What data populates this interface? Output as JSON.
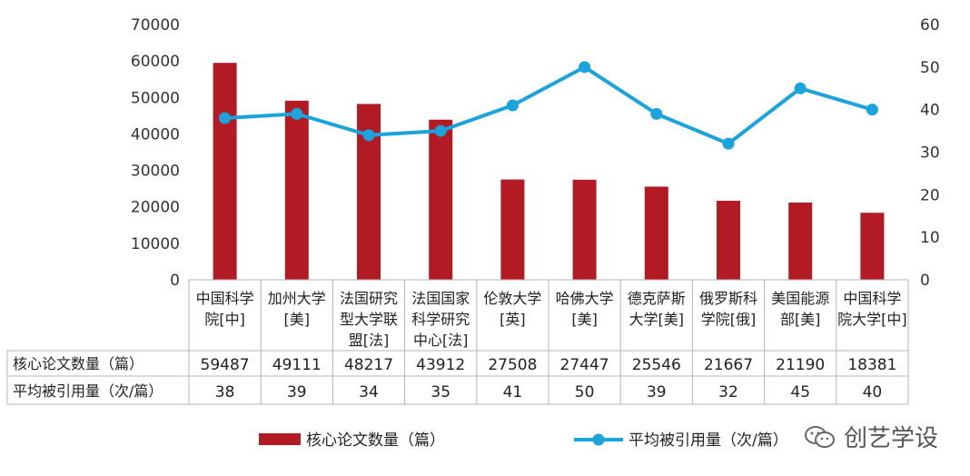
{
  "chart_data": {
    "type": "bar",
    "categories": [
      [
        "中国科学",
        "院[中]"
      ],
      [
        "加州大学",
        "[美]"
      ],
      [
        "法国研究",
        "型大学联",
        "盟[法]"
      ],
      [
        "法国国家",
        "科学研究",
        "中心[法]"
      ],
      [
        "伦敦大学",
        "[英]"
      ],
      [
        "哈佛大学",
        "[美]"
      ],
      [
        "德克萨斯",
        "大学[美]"
      ],
      [
        "俄罗斯科",
        "学院[俄]"
      ],
      [
        "美国能源",
        "部[美]"
      ],
      [
        "中国科学",
        "院大学[中]"
      ]
    ],
    "series": [
      {
        "name": "核心论文数量（篇）",
        "type": "bar",
        "axis": "left",
        "color": "#b31b24",
        "values": [
          59487,
          49111,
          48217,
          43912,
          27508,
          27447,
          25546,
          21667,
          21190,
          18381
        ]
      },
      {
        "name": "平均被引用量（次/篇）",
        "type": "line",
        "axis": "right",
        "color": "#1aa3dd",
        "values": [
          38,
          39,
          34,
          35,
          41,
          50,
          39,
          32,
          45,
          40
        ]
      }
    ],
    "y_left": {
      "min": 0,
      "max": 70000,
      "ticks": [
        0,
        10000,
        20000,
        30000,
        40000,
        50000,
        60000,
        70000
      ]
    },
    "y_right": {
      "min": 0,
      "max": 60,
      "ticks": [
        0,
        10,
        20,
        30,
        40,
        50,
        60
      ]
    },
    "table_row_labels": [
      "核心论文数量（篇）",
      "平均被引用量（次/篇）"
    ],
    "legend": {
      "placement": "bottom",
      "items": [
        {
          "label": "核心论文数量（篇）",
          "marker": "bar",
          "color": "#b31b24"
        },
        {
          "label": "平均被引用量（次/篇）",
          "marker": "line",
          "color": "#1aa3dd"
        }
      ]
    }
  },
  "watermark": {
    "text": "创艺学设",
    "icon": "wechat-icon"
  }
}
